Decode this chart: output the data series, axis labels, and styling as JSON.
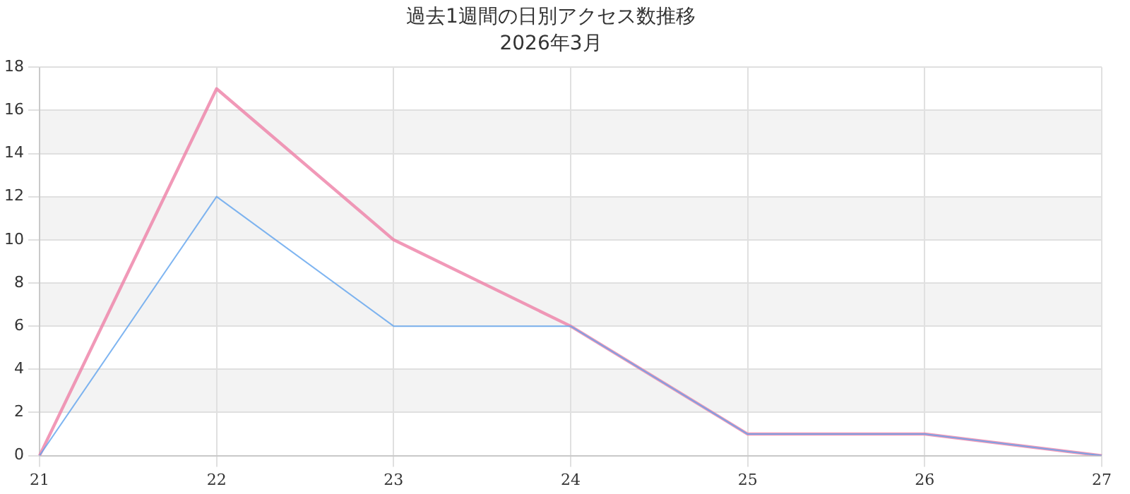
{
  "chart_data": {
    "type": "line",
    "title": "過去1週間の日別アクセス数推移",
    "subtitle": "2026年3月",
    "categories": [
      "21",
      "22",
      "23",
      "24",
      "25",
      "26",
      "27"
    ],
    "series": [
      {
        "color": "#5fa2ee",
        "values": [
          0,
          12,
          6,
          6,
          1,
          1,
          0
        ]
      },
      {
        "color": "#ee7fa6",
        "values": [
          0,
          17,
          10,
          6,
          1,
          1,
          0
        ]
      }
    ],
    "ylim": [
      0,
      18
    ],
    "yticks": [
      0,
      2,
      4,
      6,
      8,
      10,
      12,
      14,
      16,
      18
    ],
    "grid": true,
    "marker": "none",
    "line_style": "solid"
  }
}
